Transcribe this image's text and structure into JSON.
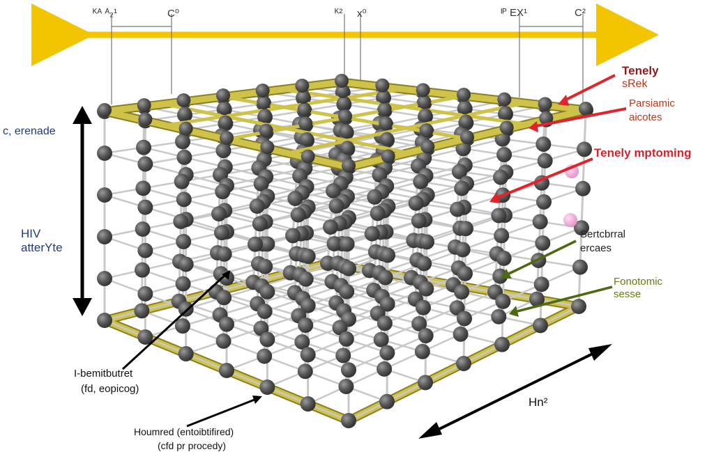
{
  "top_scale": {
    "labels": [
      "ᴷᴬ ᴬ₂¹",
      "C⁰",
      "ᴷ²",
      "x⁰",
      "ᴵᴾ EX¹",
      "C²"
    ]
  },
  "annotations": {
    "right": [
      {
        "line1": "Tenely",
        "line2": "sRek"
      },
      {
        "line1": "Parsiamic",
        "line2": "aicotes"
      },
      {
        "line1": "Tenely mptoming",
        "line2": ""
      },
      {
        "line1": "Sertcbrral",
        "line2": "ercaes"
      },
      {
        "line1": "Fonotomic",
        "line2": "sesse"
      }
    ],
    "left": [
      {
        "line1": "c, erenade",
        "line2": ""
      },
      {
        "line1": "HIV",
        "line2": "atterYte"
      }
    ],
    "bottom": [
      {
        "line1": "I-bemitbutret",
        "line2": "(fd, eopicog)"
      },
      {
        "line1": "Houmred (entoibtifired)",
        "line2": "(cfd pr procedy)"
      },
      {
        "line1": "Hn²",
        "line2": ""
      }
    ]
  },
  "colors": {
    "frame": "#cfc24a",
    "frame_edge": "#8a7f20",
    "atom": "#5a5a5a",
    "bond": "#c8c8c8",
    "arrow_yellow": "#f2c500",
    "arrow_red": "#e0242b",
    "arrow_olive": "#4e6a10",
    "dopant": "#f0a8d8"
  }
}
